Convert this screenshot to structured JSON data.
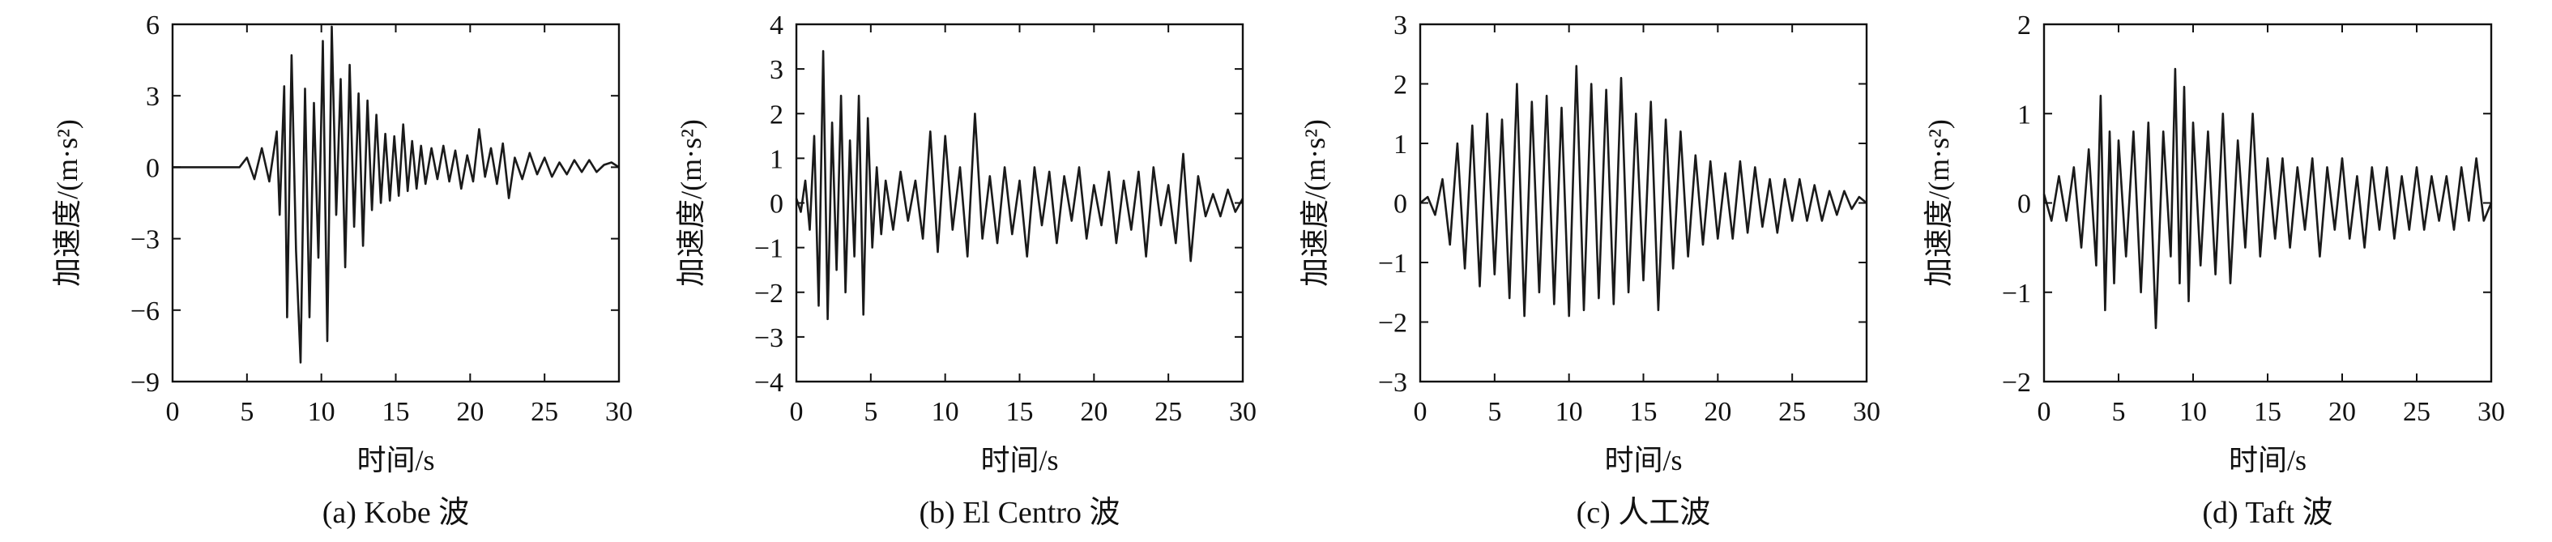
{
  "figure": {
    "panels": [
      {
        "caption": "(a) Kobe 波",
        "xlabel": "时间/s",
        "ylabel": "加速度/(m·s²)"
      },
      {
        "caption": "(b) El Centro 波",
        "xlabel": "时间/s",
        "ylabel": "加速度/(m·s²)"
      },
      {
        "caption": "(c) 人工波",
        "xlabel": "时间/s",
        "ylabel": "加速度/(m·s²)"
      },
      {
        "caption": "(d) Taft 波",
        "xlabel": "时间/s",
        "ylabel": "加速度/(m·s²)"
      }
    ]
  },
  "chart_data": [
    {
      "type": "line",
      "title": "(a) Kobe 波",
      "xlabel": "时间/s",
      "ylabel": "加速度/(m·s²)",
      "xlim": [
        0,
        30
      ],
      "ylim": [
        -9,
        6
      ],
      "xticks": [
        0,
        5,
        10,
        15,
        20,
        25,
        30
      ],
      "yticks": [
        -9,
        -6,
        -3,
        0,
        3,
        6
      ],
      "grid": false,
      "line_color": "#1a1a1a",
      "series": [
        {
          "x": [
            0,
            4.5,
            5.0,
            5.5,
            6.0,
            6.5,
            7.0,
            7.2,
            7.5,
            7.7,
            8.0,
            8.3,
            8.6,
            8.9,
            9.2,
            9.5,
            9.8,
            10.1,
            10.4,
            10.7,
            11.0,
            11.3,
            11.6,
            11.9,
            12.2,
            12.5,
            12.8,
            13.1,
            13.4,
            13.7,
            14.0,
            14.3,
            14.6,
            14.9,
            15.2,
            15.5,
            15.8,
            16.1,
            16.4,
            16.7,
            17.0,
            17.4,
            17.8,
            18.2,
            18.6,
            19.0,
            19.4,
            19.8,
            20.2,
            20.6,
            21.0,
            21.4,
            21.8,
            22.2,
            22.6,
            23.0,
            23.5,
            24.0,
            24.5,
            25.0,
            25.5,
            26.0,
            26.5,
            27.0,
            27.5,
            28.0,
            28.5,
            29.0,
            29.5,
            30.0
          ],
          "y": [
            0,
            0,
            0.4,
            -0.5,
            0.8,
            -0.6,
            1.5,
            -2.0,
            3.4,
            -6.3,
            4.7,
            -3.5,
            -8.2,
            3.3,
            -6.3,
            2.7,
            -3.8,
            5.3,
            -7.3,
            5.9,
            -2.0,
            3.7,
            -4.2,
            4.3,
            -2.5,
            3.1,
            -3.3,
            2.8,
            -1.8,
            2.2,
            -1.5,
            1.4,
            -1.4,
            1.3,
            -1.2,
            1.8,
            -1.0,
            1.1,
            -0.9,
            0.9,
            -0.7,
            0.8,
            -0.5,
            0.9,
            -0.6,
            0.7,
            -0.9,
            0.5,
            -0.6,
            1.6,
            -0.4,
            0.8,
            -0.7,
            1.0,
            -1.3,
            0.4,
            -0.5,
            0.6,
            -0.3,
            0.4,
            -0.4,
            0.2,
            -0.3,
            0.3,
            -0.2,
            0.3,
            -0.2,
            0.1,
            0.2,
            0.0
          ]
        }
      ]
    },
    {
      "type": "line",
      "title": "(b) El Centro 波",
      "xlabel": "时间/s",
      "ylabel": "加速度/(m·s²)",
      "xlim": [
        0,
        30
      ],
      "ylim": [
        -4,
        4
      ],
      "xticks": [
        0,
        5,
        10,
        15,
        20,
        25,
        30
      ],
      "yticks": [
        -4,
        -3,
        -2,
        -1,
        0,
        1,
        2,
        3,
        4
      ],
      "grid": false,
      "line_color": "#1a1a1a",
      "series": [
        {
          "x": [
            0,
            0.3,
            0.6,
            0.9,
            1.2,
            1.5,
            1.8,
            2.1,
            2.4,
            2.7,
            3.0,
            3.3,
            3.6,
            3.9,
            4.2,
            4.5,
            4.8,
            5.1,
            5.4,
            5.7,
            6.0,
            6.5,
            7.0,
            7.5,
            8.0,
            8.5,
            9.0,
            9.5,
            10.0,
            10.5,
            11.0,
            11.5,
            12.0,
            12.5,
            13.0,
            13.5,
            14.0,
            14.5,
            15.0,
            15.5,
            16.0,
            16.5,
            17.0,
            17.5,
            18.0,
            18.5,
            19.0,
            19.5,
            20.0,
            20.5,
            21.0,
            21.5,
            22.0,
            22.5,
            23.0,
            23.5,
            24.0,
            24.5,
            25.0,
            25.5,
            26.0,
            26.5,
            27.0,
            27.5,
            28.0,
            28.5,
            29.0,
            29.5,
            30.0
          ],
          "y": [
            0.1,
            -0.2,
            0.5,
            -0.6,
            1.5,
            -2.3,
            3.4,
            -2.6,
            1.8,
            -1.5,
            2.4,
            -2.0,
            1.4,
            -1.2,
            2.4,
            -2.5,
            1.9,
            -1.0,
            0.8,
            -0.7,
            0.5,
            -0.6,
            0.7,
            -0.4,
            0.5,
            -0.8,
            1.6,
            -1.1,
            1.5,
            -0.6,
            0.8,
            -1.2,
            2.0,
            -0.8,
            0.6,
            -0.9,
            0.8,
            -0.7,
            0.5,
            -1.2,
            0.8,
            -0.5,
            0.7,
            -0.9,
            0.6,
            -0.4,
            0.8,
            -0.8,
            0.4,
            -0.5,
            0.7,
            -0.9,
            0.5,
            -0.6,
            0.7,
            -1.2,
            0.8,
            -0.5,
            0.4,
            -0.9,
            1.1,
            -1.3,
            0.6,
            -0.3,
            0.2,
            -0.3,
            0.3,
            -0.2,
            0.1
          ]
        }
      ]
    },
    {
      "type": "line",
      "title": "(c) 人工波",
      "xlabel": "时间/s",
      "ylabel": "加速度/(m·s²)",
      "xlim": [
        0,
        30
      ],
      "ylim": [
        -3,
        3
      ],
      "xticks": [
        0,
        5,
        10,
        15,
        20,
        25,
        30
      ],
      "yticks": [
        -3,
        -2,
        -1,
        0,
        1,
        2,
        3
      ],
      "grid": false,
      "line_color": "#1a1a1a",
      "series": [
        {
          "x": [
            0,
            0.5,
            1.0,
            1.5,
            2.0,
            2.5,
            3.0,
            3.5,
            4.0,
            4.5,
            5.0,
            5.5,
            6.0,
            6.5,
            7.0,
            7.5,
            8.0,
            8.5,
            9.0,
            9.5,
            10.0,
            10.5,
            11.0,
            11.5,
            12.0,
            12.5,
            13.0,
            13.5,
            14.0,
            14.5,
            15.0,
            15.5,
            16.0,
            16.5,
            17.0,
            17.5,
            18.0,
            18.5,
            19.0,
            19.5,
            20.0,
            20.5,
            21.0,
            21.5,
            22.0,
            22.5,
            23.0,
            23.5,
            24.0,
            24.5,
            25.0,
            25.5,
            26.0,
            26.5,
            27.0,
            27.5,
            28.0,
            28.5,
            29.0,
            29.5,
            30.0
          ],
          "y": [
            0,
            0.1,
            -0.2,
            0.4,
            -0.7,
            1.0,
            -1.1,
            1.3,
            -1.4,
            1.5,
            -1.2,
            1.4,
            -1.6,
            2.0,
            -1.9,
            1.7,
            -1.5,
            1.8,
            -1.7,
            1.6,
            -1.9,
            2.3,
            -1.8,
            2.0,
            -1.6,
            1.9,
            -1.7,
            2.1,
            -1.5,
            1.5,
            -1.3,
            1.7,
            -1.8,
            1.4,
            -1.1,
            1.2,
            -0.9,
            0.8,
            -0.7,
            0.7,
            -0.6,
            0.5,
            -0.6,
            0.7,
            -0.5,
            0.6,
            -0.4,
            0.4,
            -0.5,
            0.4,
            -0.3,
            0.4,
            -0.3,
            0.3,
            -0.3,
            0.2,
            -0.2,
            0.2,
            -0.1,
            0.1,
            0.0
          ]
        }
      ]
    },
    {
      "type": "line",
      "title": "(d) Taft 波",
      "xlabel": "时间/s",
      "ylabel": "加速度/(m·s²)",
      "xlim": [
        0,
        30
      ],
      "ylim": [
        -2,
        2
      ],
      "xticks": [
        0,
        5,
        10,
        15,
        20,
        25,
        30
      ],
      "yticks": [
        -2,
        -1,
        0,
        1,
        2
      ],
      "grid": false,
      "line_color": "#1a1a1a",
      "series": [
        {
          "x": [
            0,
            0.5,
            1.0,
            1.5,
            2.0,
            2.5,
            3.0,
            3.5,
            3.8,
            4.1,
            4.4,
            4.7,
            5.0,
            5.5,
            6.0,
            6.5,
            7.0,
            7.5,
            8.0,
            8.5,
            8.8,
            9.1,
            9.4,
            9.7,
            10.0,
            10.5,
            11.0,
            11.5,
            12.0,
            12.5,
            13.0,
            13.5,
            14.0,
            14.5,
            15.0,
            15.5,
            16.0,
            16.5,
            17.0,
            17.5,
            18.0,
            18.5,
            19.0,
            19.5,
            20.0,
            20.5,
            21.0,
            21.5,
            22.0,
            22.5,
            23.0,
            23.5,
            24.0,
            24.5,
            25.0,
            25.5,
            26.0,
            26.5,
            27.0,
            27.5,
            28.0,
            28.5,
            29.0,
            29.5,
            30.0
          ],
          "y": [
            0.1,
            -0.2,
            0.3,
            -0.2,
            0.4,
            -0.5,
            0.6,
            -0.7,
            1.2,
            -1.2,
            0.8,
            -0.9,
            0.7,
            -0.6,
            0.8,
            -1.0,
            0.9,
            -1.4,
            0.8,
            -0.6,
            1.5,
            -0.9,
            1.3,
            -1.1,
            0.9,
            -0.7,
            0.8,
            -0.8,
            1.0,
            -0.9,
            0.7,
            -0.5,
            1.0,
            -0.6,
            0.5,
            -0.4,
            0.5,
            -0.5,
            0.4,
            -0.3,
            0.5,
            -0.6,
            0.4,
            -0.3,
            0.5,
            -0.4,
            0.3,
            -0.5,
            0.4,
            -0.3,
            0.4,
            -0.4,
            0.3,
            -0.3,
            0.4,
            -0.3,
            0.3,
            -0.2,
            0.3,
            -0.3,
            0.4,
            -0.2,
            0.5,
            -0.2,
            0.0
          ]
        }
      ]
    }
  ]
}
